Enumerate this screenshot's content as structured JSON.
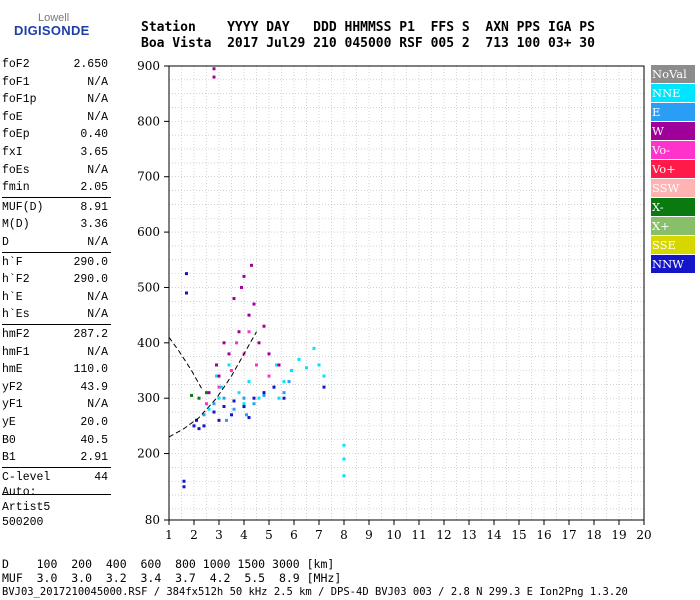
{
  "logo": {
    "brand_top": "Lowell",
    "brand_bottom": "DIGISONDE"
  },
  "header": {
    "line1": "Station    YYYY DAY   DDD HHMMSS P1  FFS S  AXN PPS IGA PS",
    "line2": "Boa Vista  2017 Jul29 210 045000 RSF 005 2  713 100 03+ 30"
  },
  "params": [
    {
      "label": "foF2",
      "value": "2.650"
    },
    {
      "label": "foF1",
      "value": "N/A"
    },
    {
      "label": "foF1p",
      "value": "N/A"
    },
    {
      "label": "foE",
      "value": "N/A"
    },
    {
      "label": "foEp",
      "value": "0.40"
    },
    {
      "label": "fxI",
      "value": "3.65"
    },
    {
      "label": "foEs",
      "value": "N/A"
    },
    {
      "label": "fmin",
      "value": "2.05"
    },
    {
      "label": "MUF(D)",
      "value": "8.91"
    },
    {
      "label": "M(D)",
      "value": "3.36"
    },
    {
      "label": "D",
      "value": "N/A"
    },
    {
      "label": "h`F",
      "value": "290.0"
    },
    {
      "label": "h`F2",
      "value": "290.0"
    },
    {
      "label": "h`E",
      "value": "N/A"
    },
    {
      "label": "h`Es",
      "value": "N/A"
    },
    {
      "label": "hmF2",
      "value": "287.2"
    },
    {
      "label": "hmF1",
      "value": "N/A"
    },
    {
      "label": "hmE",
      "value": "110.0"
    },
    {
      "label": "yF2",
      "value": "43.9"
    },
    {
      "label": "yF1",
      "value": "N/A"
    },
    {
      "label": "yE",
      "value": "20.0"
    },
    {
      "label": "B0",
      "value": "40.5"
    },
    {
      "label": "B1",
      "value": "2.91"
    },
    {
      "label": "C-level",
      "value": "44"
    }
  ],
  "auto": {
    "line1": "Auto:",
    "line2": "Artist5",
    "line3": "500200"
  },
  "legend": [
    {
      "label": "NoVal",
      "bg": "#8c8c8c",
      "fg": "#ffffff"
    },
    {
      "label": "NNE",
      "bg": "#00e5ff",
      "fg": "#ffffff"
    },
    {
      "label": "E",
      "bg": "#2a9df4",
      "fg": "#ffffff"
    },
    {
      "label": "W",
      "bg": "#a0009a",
      "fg": "#ffffff"
    },
    {
      "label": "Vo-",
      "bg": "#ff33cc",
      "fg": "#ffffff"
    },
    {
      "label": "Vo+",
      "bg": "#ff1a4a",
      "fg": "#ffffff"
    },
    {
      "label": "SSW",
      "bg": "#ffb3b3",
      "fg": "#ffffff"
    },
    {
      "label": "X-",
      "bg": "#0a7a10",
      "fg": "#ffffff"
    },
    {
      "label": "X+",
      "bg": "#8abf6a",
      "fg": "#ffffff"
    },
    {
      "label": "SSE",
      "bg": "#d6d600",
      "fg": "#ffffff"
    },
    {
      "label": "NNW",
      "bg": "#1414c8",
      "fg": "#ffffff"
    }
  ],
  "bottom": {
    "line_d": "D    100  200  400  600  800 1000 1500 3000 [km]",
    "line_muf": "MUF  3.0  3.0  3.2  3.4  3.7  4.2  5.5  8.9 [MHz]",
    "footer": "BVJ03_2017210045000.RSF / 384fx512h 50 kHz 2.5 km / DPS-4D BVJ03 003 / 2.8 N 299.3 E Ion2Png 1.3.20"
  },
  "chart_data": {
    "type": "scatter",
    "title": "",
    "xlabel": "",
    "ylabel": "",
    "xlim": [
      1,
      20
    ],
    "ylim": [
      80,
      900
    ],
    "x_ticks": [
      1,
      2,
      3,
      4,
      5,
      6,
      7,
      8,
      9,
      10,
      11,
      12,
      13,
      14,
      15,
      16,
      17,
      18,
      19,
      20
    ],
    "y_ticks": [
      80,
      200,
      300,
      400,
      500,
      600,
      700,
      800,
      900
    ],
    "grid": true,
    "legend_position": "right",
    "series": [
      {
        "name": "NNE",
        "color": "#00e5ff",
        "points": [
          [
            2.9,
            340
          ],
          [
            3.1,
            320
          ],
          [
            3.4,
            360
          ],
          [
            3.8,
            310
          ],
          [
            4.2,
            330
          ],
          [
            4.6,
            300
          ],
          [
            5.0,
            340
          ],
          [
            5.3,
            360
          ],
          [
            5.6,
            330
          ],
          [
            5.9,
            350
          ],
          [
            6.2,
            370
          ],
          [
            6.5,
            355
          ],
          [
            6.8,
            390
          ],
          [
            7.0,
            360
          ],
          [
            7.2,
            340
          ],
          [
            2.6,
            280
          ],
          [
            3.0,
            300
          ],
          [
            4.0,
            290
          ],
          [
            4.8,
            310
          ],
          [
            5.4,
            300
          ],
          [
            8.0,
            215
          ],
          [
            8.0,
            190
          ],
          [
            8.0,
            160
          ]
        ]
      },
      {
        "name": "E",
        "color": "#2a9df4",
        "points": [
          [
            2.4,
            270
          ],
          [
            2.8,
            290
          ],
          [
            3.2,
            300
          ],
          [
            3.6,
            280
          ],
          [
            4.0,
            300
          ],
          [
            4.4,
            290
          ],
          [
            4.8,
            305
          ],
          [
            5.2,
            320
          ],
          [
            5.6,
            310
          ],
          [
            5.8,
            330
          ],
          [
            3.3,
            260
          ],
          [
            4.1,
            270
          ]
        ]
      },
      {
        "name": "W",
        "color": "#a0009a",
        "points": [
          [
            2.6,
            310
          ],
          [
            3.0,
            340
          ],
          [
            3.4,
            380
          ],
          [
            3.8,
            420
          ],
          [
            4.2,
            450
          ],
          [
            4.6,
            400
          ],
          [
            5.0,
            380
          ],
          [
            5.4,
            360
          ],
          [
            3.6,
            480
          ],
          [
            4.0,
            520
          ],
          [
            4.4,
            470
          ],
          [
            4.8,
            430
          ],
          [
            3.2,
            400
          ],
          [
            2.9,
            360
          ],
          [
            3.9,
            500
          ],
          [
            4.3,
            540
          ],
          [
            2.8,
            880
          ],
          [
            2.8,
            895
          ]
        ]
      },
      {
        "name": "Vo-",
        "color": "#ff33cc",
        "points": [
          [
            2.5,
            290
          ],
          [
            3.0,
            320
          ],
          [
            3.5,
            350
          ],
          [
            4.0,
            380
          ],
          [
            4.5,
            360
          ],
          [
            5.0,
            340
          ],
          [
            4.2,
            420
          ],
          [
            3.7,
            400
          ]
        ]
      },
      {
        "name": "NNW",
        "color": "#1414c8",
        "points": [
          [
            2.1,
            260
          ],
          [
            2.4,
            250
          ],
          [
            2.8,
            275
          ],
          [
            3.2,
            285
          ],
          [
            3.6,
            295
          ],
          [
            4.0,
            285
          ],
          [
            4.4,
            300
          ],
          [
            4.8,
            310
          ],
          [
            5.2,
            320
          ],
          [
            5.6,
            300
          ],
          [
            3.0,
            260
          ],
          [
            3.5,
            270
          ],
          [
            4.2,
            265
          ],
          [
            1.7,
            490
          ],
          [
            1.7,
            525
          ],
          [
            1.6,
            150
          ],
          [
            1.6,
            140
          ],
          [
            2.0,
            250
          ],
          [
            2.2,
            245
          ],
          [
            7.2,
            320
          ]
        ]
      },
      {
        "name": "X-",
        "color": "#0a7a10",
        "points": [
          [
            1.9,
            305
          ],
          [
            2.2,
            300
          ],
          [
            2.5,
            310
          ]
        ]
      }
    ],
    "traces": [
      {
        "name": "dashed-profile",
        "points": [
          [
            1.0,
            230
          ],
          [
            1.6,
            245
          ],
          [
            2.2,
            265
          ],
          [
            2.9,
            300
          ],
          [
            3.5,
            340
          ],
          [
            4.0,
            380
          ],
          [
            4.5,
            420
          ]
        ]
      },
      {
        "name": "dashed-profile-upper",
        "points": [
          [
            1.0,
            410
          ],
          [
            1.4,
            385
          ],
          [
            1.9,
            350
          ],
          [
            2.3,
            318
          ]
        ]
      }
    ]
  }
}
